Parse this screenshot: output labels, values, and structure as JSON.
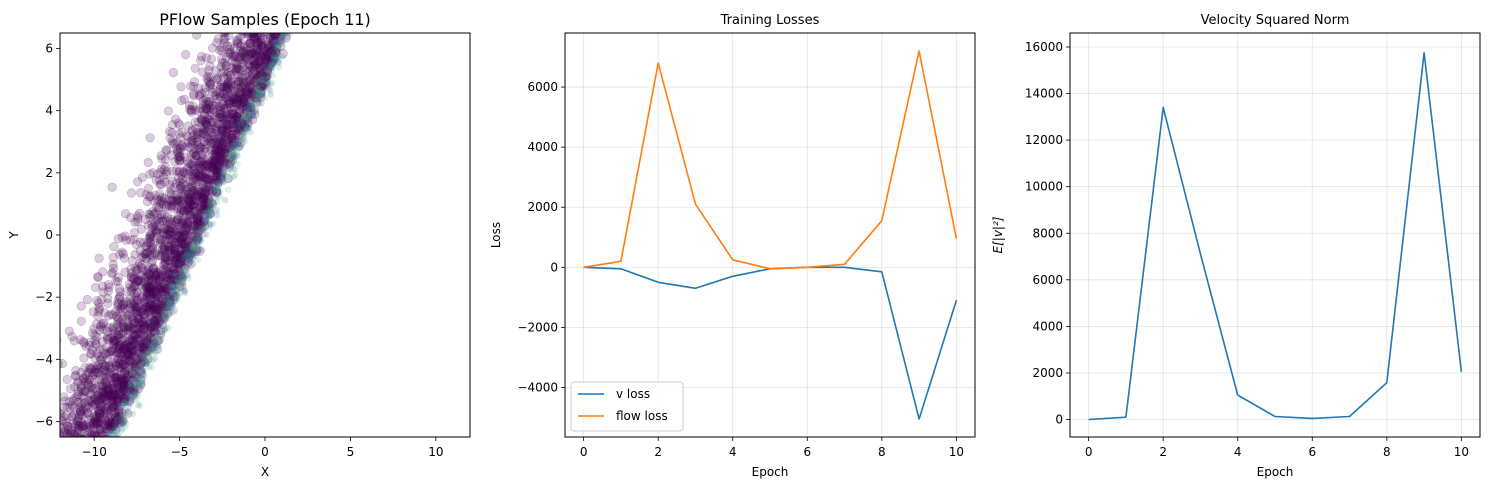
{
  "chart_data": [
    {
      "type": "scatter",
      "title": "PFlow Samples (Epoch 11)",
      "xlabel": "X",
      "ylabel": "Y",
      "xlim": [
        -12,
        12
      ],
      "ylim": [
        -6.5,
        6.5
      ],
      "xticks": [
        -10,
        -5,
        0,
        5,
        10
      ],
      "yticks": [
        -6,
        -4,
        -2,
        0,
        2,
        4,
        6
      ],
      "grid": false,
      "colors": {
        "points": "#440154",
        "dense_mid": "#31688e",
        "dense_core": "#35b779"
      },
      "band": {
        "slope": 1.3,
        "x_at_top": 1.5
      }
    },
    {
      "type": "line",
      "title": "Training Losses",
      "xlabel": "Epoch",
      "ylabel": "Loss",
      "xlim": [
        -0.5,
        10.5
      ],
      "ylim": [
        -5650,
        7800
      ],
      "xticks": [
        0,
        2,
        4,
        6,
        8,
        10
      ],
      "yticks": [
        -4000,
        -2000,
        0,
        2000,
        4000,
        6000
      ],
      "grid": true,
      "legend": "lower-left",
      "x": [
        0,
        1,
        2,
        3,
        4,
        5,
        6,
        7,
        8,
        9,
        10
      ],
      "series": [
        {
          "name": "v loss",
          "color": "#1f77b4",
          "values": [
            0,
            -50,
            -500,
            -700,
            -300,
            -50,
            0,
            0,
            -150,
            -5050,
            -1100
          ]
        },
        {
          "name": "flow loss",
          "color": "#ff7f0e",
          "values": [
            0,
            200,
            6800,
            2100,
            250,
            -50,
            0,
            100,
            1550,
            7200,
            950
          ]
        }
      ]
    },
    {
      "type": "line",
      "title": "Velocity Squared Norm",
      "xlabel": "Epoch",
      "ylabel": "E[|v|²]",
      "xlim": [
        -0.5,
        10.5
      ],
      "ylim": [
        -750,
        16600
      ],
      "xticks": [
        0,
        2,
        4,
        6,
        8,
        10
      ],
      "yticks": [
        0,
        2000,
        4000,
        6000,
        8000,
        10000,
        12000,
        14000,
        16000
      ],
      "grid": true,
      "x": [
        0,
        1,
        2,
        3,
        4,
        5,
        6,
        7,
        8,
        9,
        10
      ],
      "series": [
        {
          "color": "#1f77b4",
          "values": [
            0,
            100,
            13400,
            7100,
            1050,
            130,
            50,
            130,
            1580,
            15750,
            2050
          ]
        }
      ]
    }
  ]
}
